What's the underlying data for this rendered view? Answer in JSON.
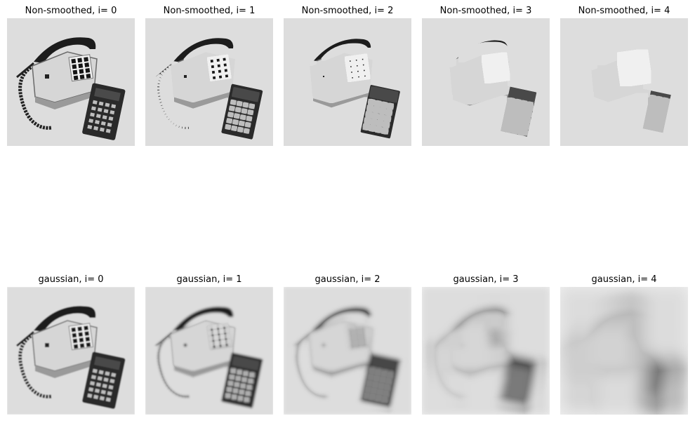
{
  "top_row": [
    {
      "title": "Non-smoothed, i= 0",
      "pyramid_level": 0,
      "smoothing": "none"
    },
    {
      "title": "Non-smoothed, i= 1",
      "pyramid_level": 1,
      "smoothing": "none"
    },
    {
      "title": "Non-smoothed, i= 2",
      "pyramid_level": 2,
      "smoothing": "none"
    },
    {
      "title": "Non-smoothed, i= 3",
      "pyramid_level": 3,
      "smoothing": "none"
    },
    {
      "title": "Non-smoothed, i= 4",
      "pyramid_level": 4,
      "smoothing": "none"
    }
  ],
  "bottom_row": [
    {
      "title": "gaussian, i= 0",
      "pyramid_level": 0,
      "smoothing": "gaussian"
    },
    {
      "title": "gaussian, i= 1",
      "pyramid_level": 1,
      "smoothing": "gaussian"
    },
    {
      "title": "gaussian, i= 2",
      "pyramid_level": 2,
      "smoothing": "gaussian"
    },
    {
      "title": "gaussian, i= 3",
      "pyramid_level": 3,
      "smoothing": "gaussian"
    },
    {
      "title": "gaussian, i= 4",
      "pyramid_level": 4,
      "smoothing": "gaussian"
    }
  ],
  "subject": "grayscale photo of a desk telephone and calculator"
}
